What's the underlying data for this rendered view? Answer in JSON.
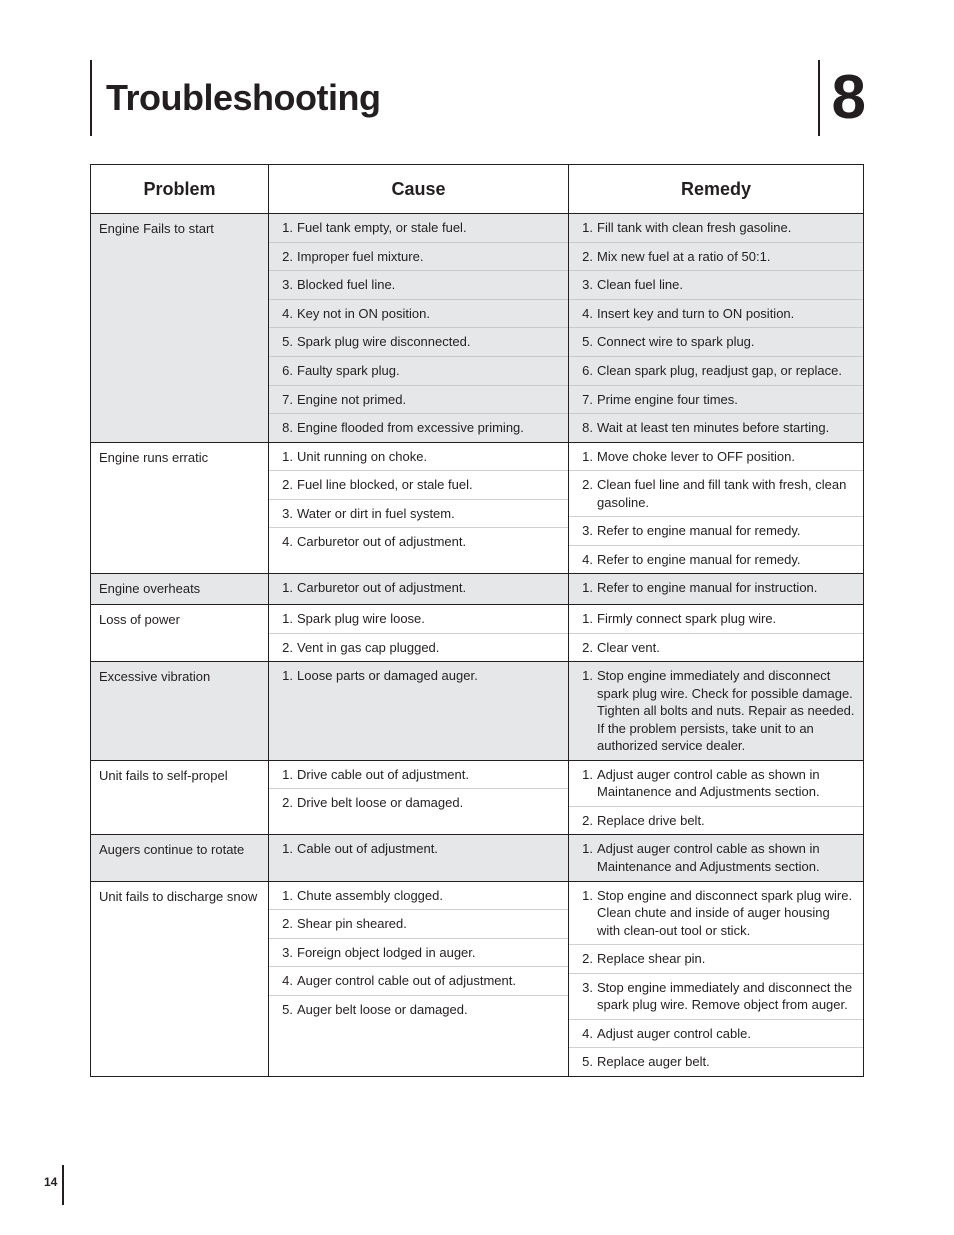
{
  "page": {
    "title": "Troubleshooting",
    "chapter_number": "8",
    "page_number": "14"
  },
  "table": {
    "headers": {
      "problem": "Problem",
      "cause": "Cause",
      "remedy": "Remedy"
    },
    "rows": [
      {
        "problem": "Engine Fails to start",
        "shaded": true,
        "causes": [
          "Fuel tank empty, or stale fuel.",
          "Improper fuel mixture.",
          "Blocked fuel line.",
          "Key not in ON position.",
          "Spark plug wire disconnected.",
          "Faulty spark plug.",
          "Engine not primed.",
          "Engine flooded from excessive priming."
        ],
        "remedies": [
          "Fill tank with clean fresh gasoline.",
          "Mix new fuel at a ratio of 50:1.",
          "Clean fuel line.",
          "Insert key and turn to ON position.",
          "Connect wire to spark plug.",
          "Clean spark plug, readjust gap, or replace.",
          "Prime engine four times.",
          "Wait at least ten minutes before starting."
        ]
      },
      {
        "problem": "Engine runs erratic",
        "shaded": false,
        "causes": [
          "Unit running on choke.",
          "Fuel line blocked, or stale fuel.",
          "Water or dirt in fuel system.",
          "Carburetor out of adjustment."
        ],
        "remedies": [
          "Move choke lever to OFF position.",
          "Clean fuel line and fill tank with fresh, clean gasoline.",
          "Refer to engine manual for remedy.",
          "Refer to engine manual for remedy."
        ]
      },
      {
        "problem": "Engine overheats",
        "shaded": true,
        "causes": [
          "Carburetor out of adjustment."
        ],
        "remedies": [
          "Refer to engine manual for instruction."
        ]
      },
      {
        "problem": "Loss of power",
        "shaded": false,
        "causes": [
          "Spark plug wire loose.",
          "Vent in gas cap plugged."
        ],
        "remedies": [
          "Firmly connect spark plug wire.",
          "Clear vent."
        ]
      },
      {
        "problem": "Excessive vibration",
        "shaded": true,
        "causes": [
          "Loose parts or damaged auger."
        ],
        "remedies": [
          "Stop engine immediately and disconnect spark plug wire. Check for possible damage. Tighten all bolts and nuts. Repair as needed. If the problem persists, take unit to an authorized service dealer."
        ]
      },
      {
        "problem": "Unit fails to self-propel",
        "shaded": false,
        "causes": [
          "Drive cable out of adjustment.",
          "Drive belt loose or damaged."
        ],
        "remedies": [
          "Adjust auger control cable as shown in Maintanence and Adjustments section.",
          "Replace drive belt."
        ]
      },
      {
        "problem": "Augers continue to rotate",
        "shaded": true,
        "causes": [
          "Cable out of adjustment."
        ],
        "remedies": [
          "Adjust auger control cable as shown in Maintenance and Adjustments section."
        ]
      },
      {
        "problem": "Unit fails to discharge snow",
        "shaded": false,
        "causes": [
          "Chute assembly clogged.",
          "Shear pin sheared.",
          "Foreign object lodged in auger.",
          "Auger control cable out of adjustment.",
          "Auger belt loose or damaged."
        ],
        "remedies": [
          "Stop engine and disconnect spark plug wire. Clean chute and inside of auger housing with clean-out tool or stick.",
          "Replace shear pin.",
          "Stop engine immediately and disconnect the spark plug wire. Remove object from auger.",
          "Adjust auger control cable.",
          "Replace auger belt."
        ]
      }
    ]
  }
}
